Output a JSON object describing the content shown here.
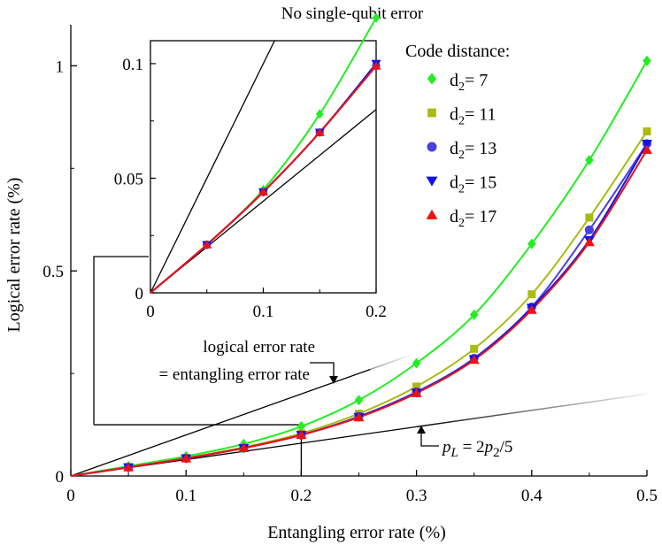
{
  "chart_data": {
    "type": "scatter",
    "title": "No single-qubit error",
    "xlabel": "Entangling error rate (%)",
    "ylabel": "Logical error rate (%)",
    "xlim": [
      0,
      0.5
    ],
    "ylim": [
      0,
      1.1
    ],
    "xticks": [
      "0",
      "0.1",
      "0.2",
      "0.3",
      "0.4",
      "0.5"
    ],
    "yticks": [
      "0",
      "0.5",
      "1"
    ],
    "legend": {
      "title": "Code distance:",
      "position": "top-right"
    },
    "x": [
      0.05,
      0.1,
      0.15,
      0.2,
      0.25,
      0.3,
      0.35,
      0.4,
      0.45,
      0.5
    ],
    "series": [
      {
        "name": "d",
        "sub": "2",
        "eq": "= 7",
        "color": "#22ee22",
        "marker": "diamond",
        "values": [
          0.024,
          0.048,
          0.078,
          0.121,
          0.185,
          0.275,
          0.393,
          0.566,
          0.77,
          1.012
        ]
      },
      {
        "name": "d",
        "sub": "2",
        "eq": "= 11",
        "color": "#aabb11",
        "marker": "square",
        "values": [
          0.022,
          0.044,
          0.07,
          0.104,
          0.152,
          0.218,
          0.31,
          0.443,
          0.63,
          0.84
        ]
      },
      {
        "name": "d",
        "sub": "2",
        "eq": "= 13",
        "color": "#4a3fe0",
        "marker": "circle",
        "values": [
          0.021,
          0.043,
          0.068,
          0.1,
          0.145,
          0.205,
          0.287,
          0.412,
          0.6,
          0.81
        ]
      },
      {
        "name": "d",
        "sub": "2",
        "eq": "= 15",
        "color": "#1111ee",
        "marker": "triangle-down",
        "values": [
          0.021,
          0.043,
          0.068,
          0.1,
          0.144,
          0.203,
          0.285,
          0.41,
          0.575,
          0.81
        ]
      },
      {
        "name": "d",
        "sub": "2",
        "eq": "= 17",
        "color": "#ee1111",
        "marker": "triangle-up",
        "values": [
          0.021,
          0.043,
          0.068,
          0.1,
          0.143,
          0.202,
          0.283,
          0.405,
          0.57,
          0.795
        ]
      }
    ],
    "reference_lines": [
      {
        "label_line1": "logical error rate",
        "label_line2": "= entangling error rate",
        "slope": 1
      },
      {
        "label": "p_L = 2p_2/5",
        "label_parts": [
          "p",
          "L",
          " = 2",
          "p",
          "2",
          "/5"
        ],
        "slope": 0.4
      }
    ],
    "inset": {
      "xlim": [
        0,
        0.2
      ],
      "ylim": [
        0,
        0.11
      ],
      "xticks": [
        "0",
        "0.1",
        "0.2"
      ],
      "yticks": [
        "0",
        "0.05",
        "0.1"
      ],
      "x": [
        0.05,
        0.1,
        0.15,
        0.2
      ],
      "values": [
        [
          0.021,
          0.045,
          0.078,
          0.12
        ],
        [
          0.021,
          0.044,
          0.07,
          0.1
        ],
        [
          0.021,
          0.044,
          0.07,
          0.099
        ],
        [
          0.021,
          0.044,
          0.07,
          0.1
        ],
        [
          0.021,
          0.044,
          0.07,
          0.099
        ]
      ]
    }
  }
}
